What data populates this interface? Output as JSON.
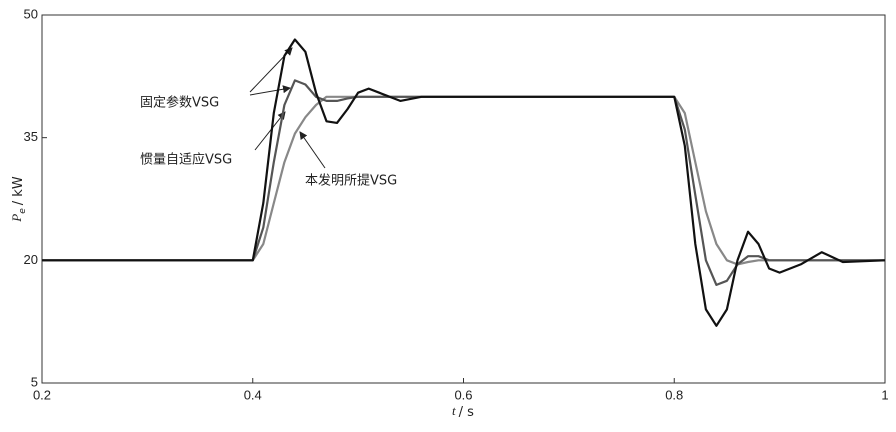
{
  "chart_data": {
    "type": "line",
    "y_label_symbol": "P",
    "y_label_subscript": "e",
    "y_label_unit": "/ kW",
    "x_label_symbol": "t",
    "x_label_unit": "/ s",
    "annotations": [
      "固定参数VSG",
      "惯量自适应VSG",
      "本发明所提VSG"
    ],
    "x": [
      0.2,
      0.4,
      0.41,
      0.42,
      0.43,
      0.44,
      0.45,
      0.46,
      0.47,
      0.48,
      0.49,
      0.5,
      0.51,
      0.52,
      0.54,
      0.56,
      0.6,
      0.8,
      0.81,
      0.82,
      0.83,
      0.84,
      0.85,
      0.86,
      0.87,
      0.88,
      0.89,
      0.9,
      0.92,
      0.94,
      0.96,
      1.0
    ],
    "series": [
      {
        "name": "固定参数VSG",
        "color": "#111111",
        "values": [
          20,
          20,
          27,
          38,
          45,
          47,
          45.5,
          40.5,
          37,
          36.8,
          38.5,
          40.5,
          41,
          40.5,
          39.5,
          40,
          40,
          40,
          34,
          22,
          14,
          12,
          14,
          20,
          23.5,
          22,
          19,
          18.5,
          19.5,
          21,
          19.8,
          20
        ]
      },
      {
        "name": "惯量自适应VSG",
        "color": "#555555",
        "values": [
          20,
          20,
          24,
          32,
          39,
          42,
          41.5,
          40,
          39.5,
          39.5,
          39.8,
          40,
          40,
          40,
          40,
          40,
          40,
          40,
          36,
          28,
          20,
          17,
          17.5,
          19.5,
          20.5,
          20.5,
          20,
          20,
          20,
          20,
          20,
          20
        ]
      },
      {
        "name": "本发明所提VSG",
        "color": "#888888",
        "values": [
          20,
          20,
          22,
          27,
          32,
          35.5,
          37.5,
          39,
          40,
          40,
          40,
          40,
          40,
          40,
          40,
          40,
          40,
          40,
          38,
          32,
          26,
          22,
          20,
          19.5,
          19.8,
          20,
          20,
          20,
          20,
          20,
          20,
          20
        ]
      }
    ],
    "xlim": [
      0.2,
      1
    ],
    "xticks": [
      0.2,
      0.4,
      0.6,
      0.8,
      1
    ],
    "ylim": [
      5,
      50
    ],
    "yticks": [
      5,
      20,
      35,
      50
    ]
  }
}
